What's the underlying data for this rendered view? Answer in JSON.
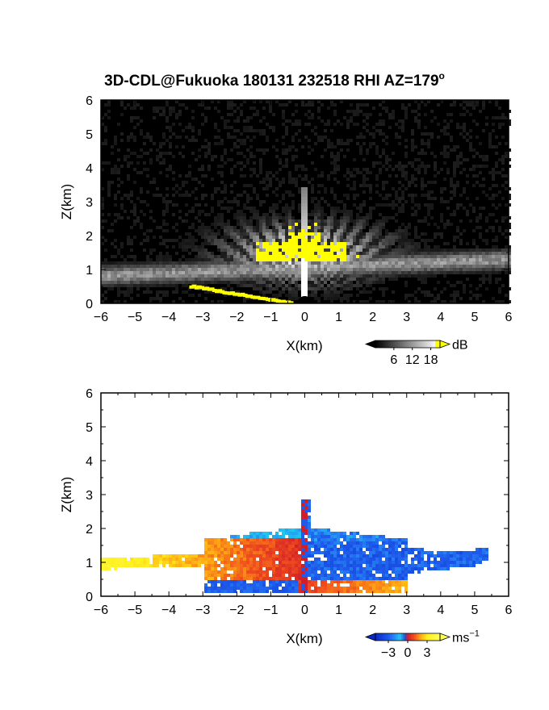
{
  "title": "3D-CDL@Fukuoka 180131 232518 RHI AZ=179",
  "title_superscript": "o",
  "chart_data": [
    {
      "type": "heatmap",
      "name": "snr",
      "xlabel": "X(km)",
      "ylabel": "Z(km)",
      "xlim": [
        -6,
        6
      ],
      "ylim": [
        0,
        6
      ],
      "xticks": [
        "−6",
        "−5",
        "−4",
        "−3",
        "−2",
        "−1",
        "0",
        "1",
        "2",
        "3",
        "4",
        "5",
        "6"
      ],
      "yticks": [
        "0",
        "1",
        "2",
        "3",
        "4",
        "5",
        "6"
      ],
      "colorbar": {
        "unit": "dB",
        "unit_superscript": "",
        "ticks": [
          "6",
          "12",
          "18"
        ],
        "tick_values": [
          6,
          12,
          18
        ],
        "range": [
          0,
          21
        ]
      },
      "colors": {
        "low": "#000000",
        "high": "#ffffff",
        "saturated": "#ffff00"
      }
    },
    {
      "type": "heatmap",
      "name": "doppler-velocity",
      "xlabel": "X(km)",
      "ylabel": "Z(km)",
      "xlim": [
        -6,
        6
      ],
      "ylim": [
        0,
        6
      ],
      "xticks": [
        "−6",
        "−5",
        "−4",
        "−3",
        "−2",
        "−1",
        "0",
        "1",
        "2",
        "3",
        "4",
        "5",
        "6"
      ],
      "yticks": [
        "0",
        "1",
        "2",
        "3",
        "4",
        "5",
        "6"
      ],
      "colorbar": {
        "unit": "ms",
        "unit_superscript": "−1",
        "ticks": [
          "−3",
          "0",
          "3"
        ],
        "tick_values": [
          -3,
          0,
          3
        ],
        "range": [
          -5,
          5
        ]
      },
      "colors": {
        "negative": "#0a3fe0",
        "cyan": "#1ec8f0",
        "zero": "#d81e1e",
        "positive": "#ffff20"
      }
    }
  ]
}
